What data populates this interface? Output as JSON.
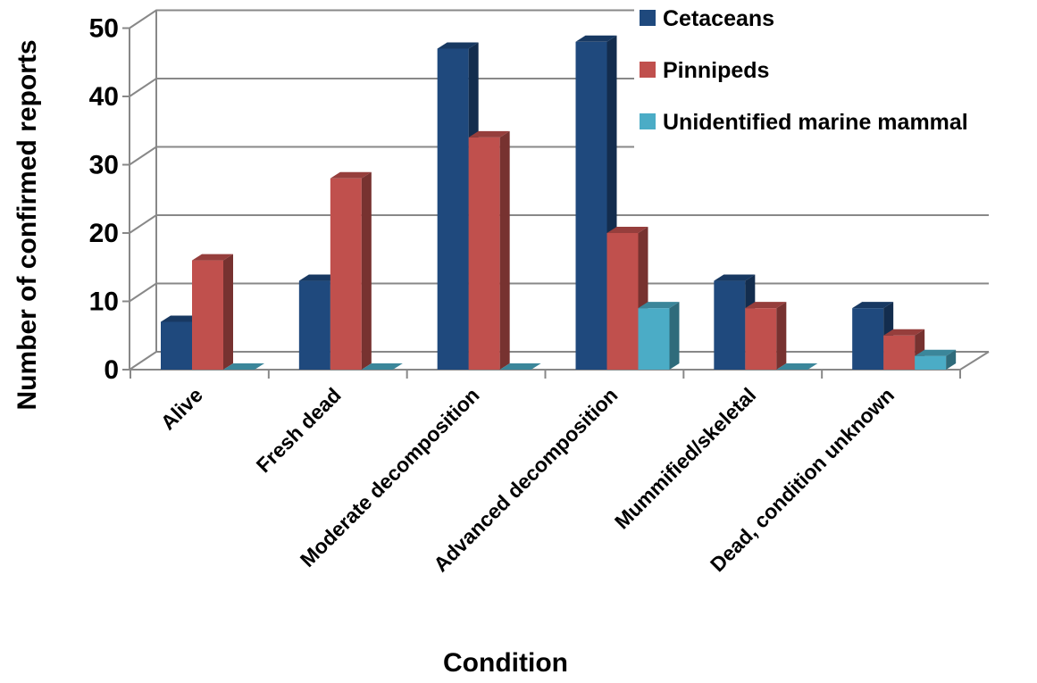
{
  "chart_data": {
    "type": "bar",
    "title": "",
    "xlabel": "Condition",
    "ylabel": "Number of confirmed reports",
    "ylim": [
      0,
      50
    ],
    "yticks": [
      0,
      10,
      20,
      30,
      40,
      50
    ],
    "grid": true,
    "legend_position": "top-right",
    "categories": [
      "Alive",
      "Fresh dead",
      "Moderate decomposition",
      "Advanced decomposition",
      "Mummified/skeletal",
      "Dead, condition unknown"
    ],
    "series": [
      {
        "name": "Cetaceans",
        "color": "#1F497D",
        "values": [
          7,
          13,
          47,
          48,
          13,
          9
        ]
      },
      {
        "name": "Pinnipeds",
        "color": "#C0504D",
        "values": [
          16,
          28,
          34,
          20,
          9,
          5
        ]
      },
      {
        "name": "Unidentified marine mammal",
        "color": "#4BACC6",
        "values": [
          0,
          0,
          0,
          9,
          0,
          2
        ]
      }
    ]
  }
}
